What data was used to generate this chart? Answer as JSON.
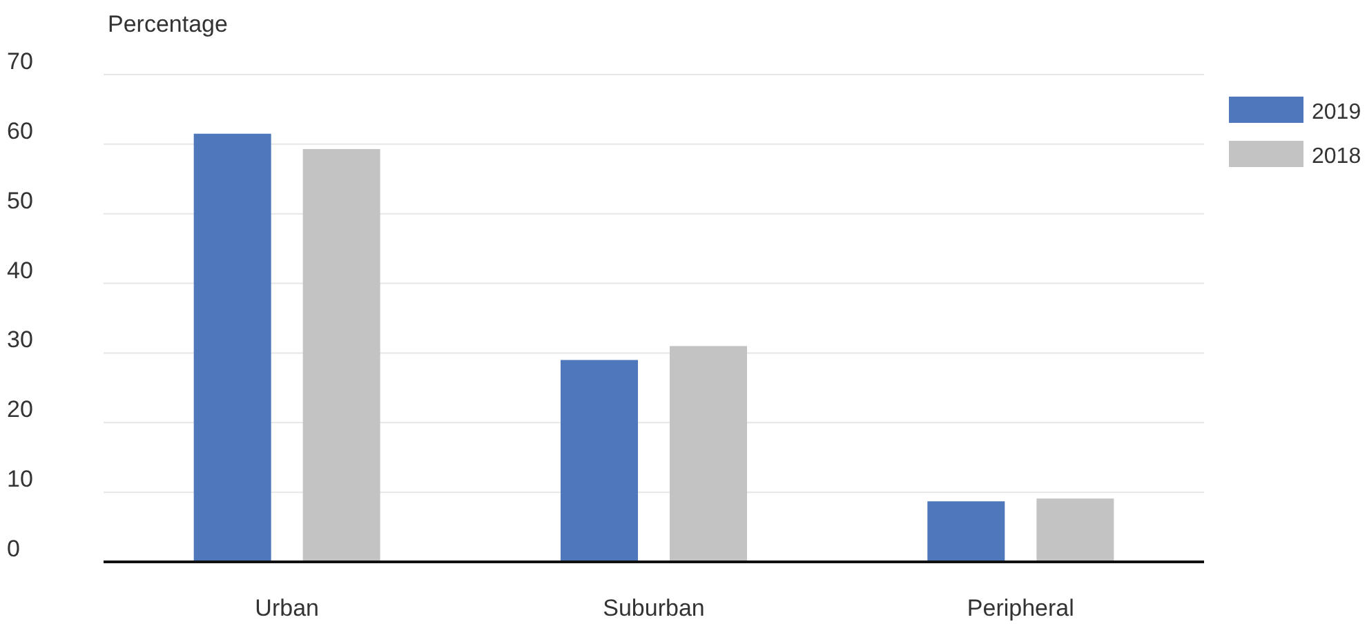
{
  "chart_data": {
    "type": "bar",
    "ylabel": "Percentage",
    "categories": [
      "Urban",
      "Suburban",
      "Peripheral"
    ],
    "series": [
      {
        "name": "2019",
        "color": "#4e78bb",
        "values": [
          61.5,
          29,
          8.7
        ]
      },
      {
        "name": "2018",
        "color": "#c3c3c3",
        "values": [
          59.3,
          31,
          9.1
        ]
      }
    ],
    "ylim": [
      0,
      70
    ],
    "yticks": [
      0,
      10,
      20,
      30,
      40,
      50,
      60,
      70
    ],
    "grid": "y",
    "legend": "top right"
  }
}
